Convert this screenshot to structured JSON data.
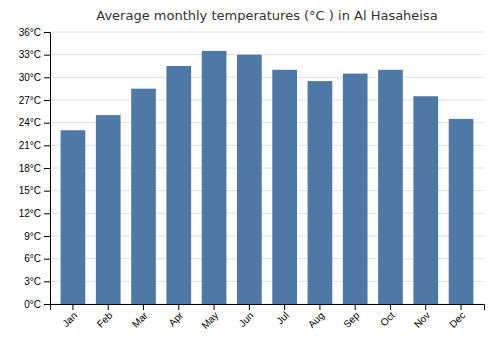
{
  "chart_data": {
    "type": "bar",
    "title": "Average monthly temperatures (°C ) in Al Hasaheisa",
    "categories": [
      "Jan",
      "Feb",
      "Mar",
      "Apr",
      "May",
      "Jun",
      "Jul",
      "Aug",
      "Sep",
      "Oct",
      "Nov",
      "Dec"
    ],
    "values": [
      23.0,
      25.0,
      28.5,
      31.5,
      33.5,
      33.0,
      31.0,
      29.5,
      30.5,
      31.0,
      27.5,
      24.5
    ],
    "ylim": [
      0,
      36
    ],
    "yticks": [
      {
        "value": 0,
        "label": "0°C"
      },
      {
        "value": 3,
        "label": "3°C"
      },
      {
        "value": 6,
        "label": "6°C"
      },
      {
        "value": 9,
        "label": "9°C"
      },
      {
        "value": 12,
        "label": "12°C"
      },
      {
        "value": 15,
        "label": "15°C"
      },
      {
        "value": 18,
        "label": "18°C"
      },
      {
        "value": 21,
        "label": "21°C"
      },
      {
        "value": 24,
        "label": "24°C"
      },
      {
        "value": 27,
        "label": "27°C"
      },
      {
        "value": 30,
        "label": "30°C"
      },
      {
        "value": 33,
        "label": "33°C"
      },
      {
        "value": 36,
        "label": "36°C"
      }
    ],
    "grid": true
  }
}
